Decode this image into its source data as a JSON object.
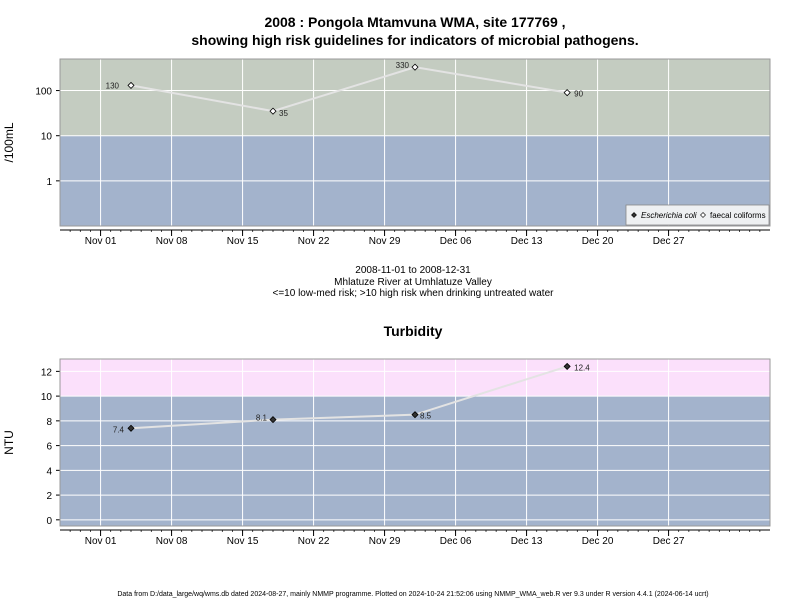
{
  "chart_data": [
    {
      "type": "scatter",
      "title": "2008 : Pongola Mtamvuna WMA, site 177769 ,",
      "subtitle": "showing high risk guidelines for indicators of microbial pathogens.",
      "ylabel": "/100mL",
      "yscale": "log",
      "yticks": [
        "1",
        "10",
        "100"
      ],
      "ylim": [
        0.1,
        500
      ],
      "xlim": [
        "2008-10-28",
        "2009-01-06"
      ],
      "xticks": [
        "Nov 01",
        "Nov 08",
        "Nov 15",
        "Nov 22",
        "Nov 29",
        "Dec 06",
        "Dec 13",
        "Dec 20",
        "Dec 27"
      ],
      "bands": [
        {
          "from": 10,
          "to": 500,
          "color": "#c4ccc1"
        },
        {
          "from": 0.1,
          "to": 10,
          "color": "#a3b3cc"
        }
      ],
      "series": [
        {
          "name": "faecal coliforms",
          "marker": "open-diamond",
          "x": [
            "2008-11-04",
            "2008-11-18",
            "2008-12-02",
            "2008-12-17"
          ],
          "y": [
            130,
            35,
            330,
            90
          ],
          "labels": [
            "130",
            "35",
            "330",
            "90"
          ]
        },
        {
          "name": "Escherichia coli",
          "marker": "filled-diamond",
          "x": [],
          "y": []
        }
      ],
      "legend_position": "bottom-right"
    },
    {
      "type": "line",
      "title": "Turbidity",
      "ylabel": "NTU",
      "yticks": [
        "0",
        "2",
        "4",
        "6",
        "8",
        "10",
        "12"
      ],
      "ylim": [
        -0.5,
        13
      ],
      "xlim": [
        "2008-10-28",
        "2009-01-06"
      ],
      "xticks": [
        "Nov 01",
        "Nov 08",
        "Nov 15",
        "Nov 22",
        "Nov 29",
        "Dec 06",
        "Dec 13",
        "Dec 20",
        "Dec 27"
      ],
      "bands": [
        {
          "from": 10,
          "to": 13,
          "color": "#fbe0fb"
        },
        {
          "from": -0.5,
          "to": 10,
          "color": "#a3b3cc"
        }
      ],
      "series": [
        {
          "x": [
            "2008-11-04",
            "2008-11-18",
            "2008-12-02",
            "2008-12-17"
          ],
          "y": [
            7.4,
            8.1,
            8.5,
            12.4
          ],
          "labels": [
            "7.4",
            "8.1",
            "8.5",
            "12.4"
          ]
        }
      ]
    }
  ],
  "mid_text": {
    "line1": "2008-11-01 to 2008-12-31",
    "line2": "Mhlatuze River at Umhlatuze Valley",
    "line3": "<=10 low-med risk; >10 high risk when drinking untreated water"
  },
  "footer": "Data from D:/data_large/wq/wms.db dated 2024-08-27, mainly NMMP programme. Plotted on 2024-10-24 21:52:06 using NMMP_WMA_web.R ver 9.3 under R version 4.4.1 (2024-06-14 ucrt)",
  "colors": {
    "grid": "#ffffff",
    "line": "#e3e3e3",
    "point_fill": "#333333",
    "frame": "#999999"
  }
}
